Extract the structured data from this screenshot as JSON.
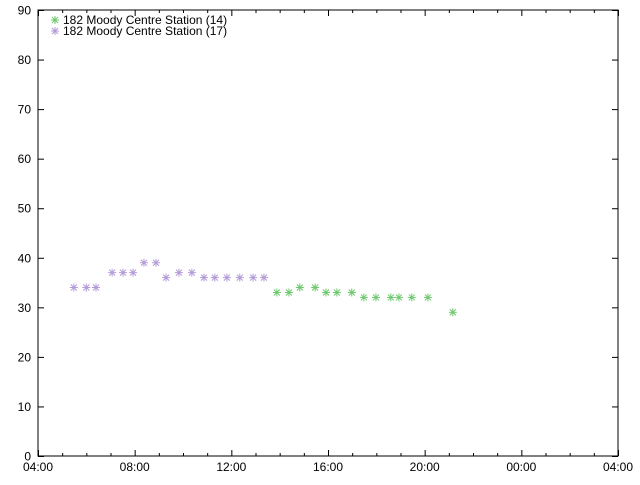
{
  "chart_data": {
    "type": "scatter",
    "title": "",
    "xlabel": "",
    "ylabel": "",
    "xlim": [
      "04:00",
      "04:00 (+1 day)"
    ],
    "ylim": [
      0,
      90
    ],
    "x_ticks": [
      "04:00",
      "08:00",
      "12:00",
      "16:00",
      "20:00",
      "00:00",
      "04:00"
    ],
    "y_ticks": [
      0,
      10,
      20,
      30,
      40,
      50,
      60,
      70,
      80,
      90
    ],
    "grid": false,
    "legend_position": "top-left",
    "marker": "asterisk",
    "series": [
      {
        "name": "182 Moody Centre Station (14)",
        "color": "#6ec86e",
        "x": [
          "13:53",
          "14:23",
          "14:50",
          "15:28",
          "15:55",
          "16:22",
          "16:59",
          "17:29",
          "17:59",
          "18:36",
          "18:56",
          "19:28",
          "20:08",
          "21:10"
        ],
        "values": [
          33,
          33,
          34,
          34,
          33,
          33,
          33,
          32,
          32,
          32,
          32,
          32,
          32,
          29
        ]
      },
      {
        "name": "182 Moody Centre Station (17)",
        "color": "#b39ad8",
        "x": [
          "05:29",
          "06:00",
          "06:24",
          "07:04",
          "07:31",
          "07:56",
          "08:23",
          "08:53",
          "09:18",
          "09:50",
          "10:22",
          "10:52",
          "11:19",
          "11:49",
          "12:21",
          "12:54",
          "13:21"
        ],
        "values": [
          34,
          34,
          34,
          37,
          37,
          37,
          39,
          39,
          36,
          37,
          37,
          36,
          36,
          36,
          36,
          36,
          36
        ]
      }
    ]
  }
}
